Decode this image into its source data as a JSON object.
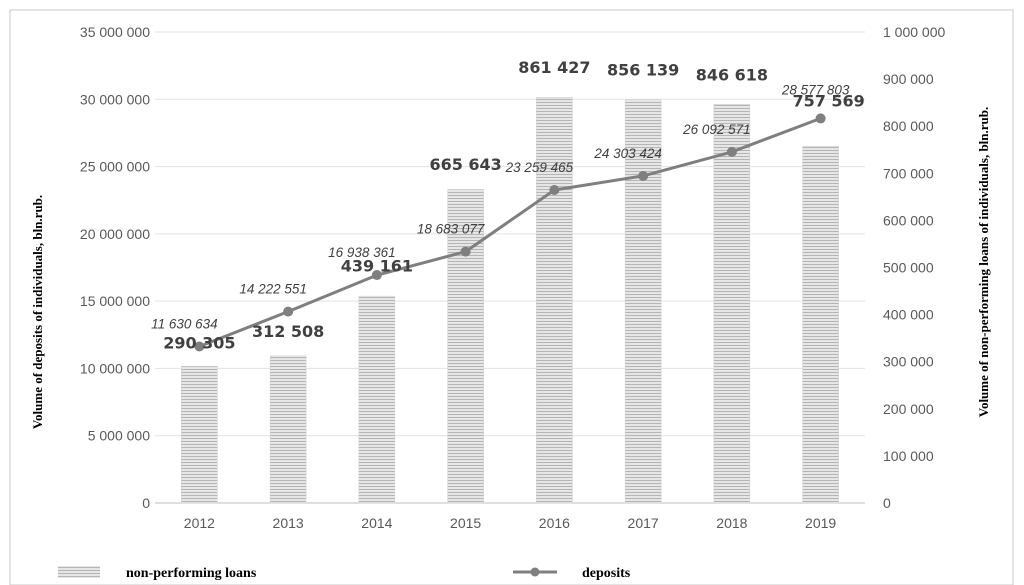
{
  "chart_data": {
    "type": "bar",
    "categories": [
      "2012",
      "2013",
      "2014",
      "2015",
      "2016",
      "2017",
      "2018",
      "2019"
    ],
    "series": [
      {
        "name": "non-performing loans",
        "type": "bar",
        "axis": "right",
        "values": [
          290305,
          312508,
          439161,
          665643,
          861427,
          856139,
          846618,
          757569
        ],
        "labels": [
          "290 305",
          "312 508",
          "439 161",
          "665 643",
          "861 427",
          "856 139",
          "846 618",
          "757 569"
        ],
        "color": "#d4d4d4"
      },
      {
        "name": "deposits",
        "type": "line",
        "axis": "left",
        "values": [
          11630634,
          14222551,
          16938361,
          18683077,
          23259465,
          24303424,
          26092571,
          28577803
        ],
        "labels": [
          "11 630 634",
          "14 222 551",
          "16 938 361",
          "18 683 077",
          "23 259 465",
          "24 303 424",
          "26 092 571",
          "28 577 803"
        ],
        "color": "#7f7f7f"
      }
    ],
    "left_axis": {
      "label": "Volume of deposits of individuals, bln.rub.",
      "ylim": [
        0,
        35000000
      ],
      "ticks": [
        0,
        5000000,
        10000000,
        15000000,
        20000000,
        25000000,
        30000000,
        35000000
      ],
      "tick_labels": [
        "0",
        "5 000 000",
        "10 000 000",
        "15 000 000",
        "20 000 000",
        "25 000 000",
        "30 000 000",
        "35 000 000"
      ]
    },
    "right_axis": {
      "label": "Volume of non-performing loans  of individuals, bln.rub.",
      "ylim": [
        0,
        1000000
      ],
      "ticks": [
        0,
        100000,
        200000,
        300000,
        400000,
        500000,
        600000,
        700000,
        800000,
        900000,
        1000000
      ],
      "tick_labels": [
        "0",
        "100 000",
        "200 000",
        "300 000",
        "400 000",
        "500 000",
        "600 000",
        "700 000",
        "800 000",
        "900 000",
        "1 000 000"
      ]
    },
    "grid": true,
    "legend": {
      "position": "bottom",
      "items": [
        "non-performing loans",
        "deposits"
      ]
    }
  }
}
